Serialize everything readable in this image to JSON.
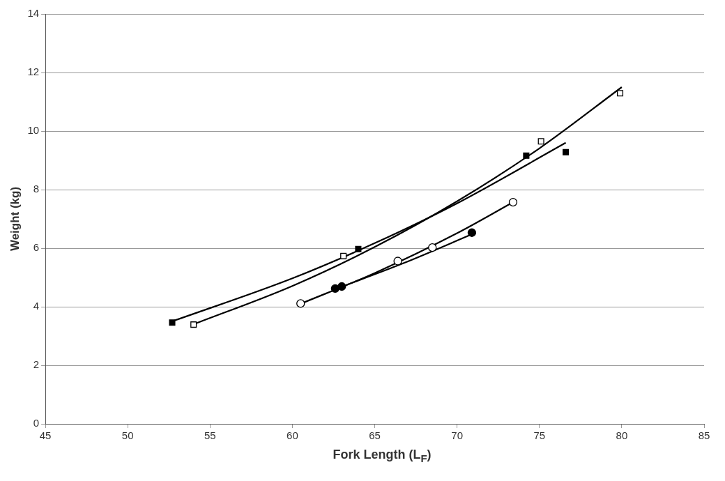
{
  "chart_data": {
    "type": "scatter",
    "xlabel": "Fork Length (L$_{F}$)",
    "ylabel": "Weight (kg)",
    "xlim": [
      45,
      85
    ],
    "xticks": [
      45,
      50,
      55,
      60,
      65,
      70,
      75,
      80,
      85
    ],
    "ylim": [
      0,
      14
    ],
    "yticks": [
      0,
      2,
      4,
      6,
      8,
      10,
      12,
      14
    ],
    "grid": "y",
    "legend": false,
    "series": [
      {
        "type": "scatter",
        "marker": "square",
        "color": "#000000",
        "x": [
          52.7,
          64.0,
          74.2,
          76.6
        ],
        "values": [
          3.46,
          5.97,
          9.16,
          9.28
        ]
      },
      {
        "type": "scatter",
        "marker": "square",
        "color": "#ffffff",
        "x": [
          54.0,
          63.1,
          75.1,
          79.9
        ],
        "values": [
          3.39,
          5.73,
          9.65,
          11.29
        ]
      },
      {
        "type": "scatter",
        "marker": "circle",
        "color": "#ffffff",
        "x": [
          60.5,
          66.4,
          68.5,
          73.4
        ],
        "values": [
          4.11,
          5.56,
          6.02,
          7.57
        ]
      },
      {
        "type": "scatter",
        "marker": "circle",
        "color": "#000000",
        "x": [
          62.6,
          63.0,
          70.9
        ],
        "values": [
          4.62,
          4.69,
          6.53
        ]
      },
      {
        "type": "line",
        "marker": "none",
        "color": "#000000",
        "x": [
          52.7,
          60,
          65,
          70,
          76.6
        ],
        "values": [
          3.5,
          4.97,
          6.17,
          7.53,
          9.6
        ]
      },
      {
        "type": "line",
        "marker": "none",
        "color": "#000000",
        "x": [
          54,
          60,
          65,
          70,
          75,
          80
        ],
        "values": [
          3.4,
          4.71,
          6.04,
          7.6,
          9.41,
          11.5
        ]
      },
      {
        "type": "line",
        "marker": "none",
        "color": "#000000",
        "x": [
          60.5,
          65,
          70,
          73.5
        ],
        "values": [
          4.1,
          5.15,
          6.51,
          7.6
        ]
      },
      {
        "type": "line",
        "marker": "none",
        "color": "#000000",
        "x": [
          62.6,
          66.8,
          71
        ],
        "values": [
          4.6,
          5.5,
          6.5
        ]
      }
    ]
  }
}
